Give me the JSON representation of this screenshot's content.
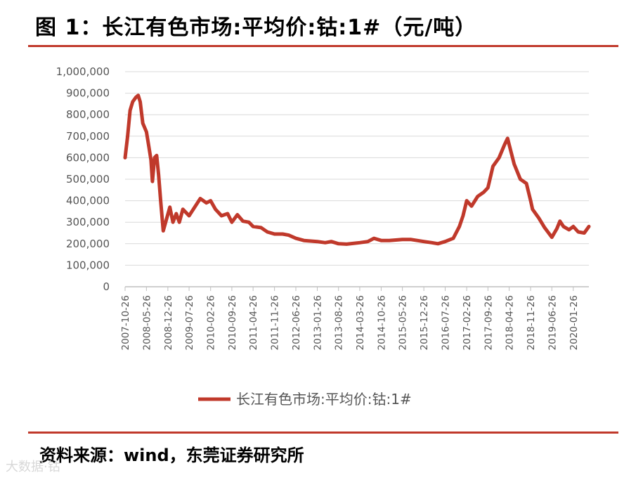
{
  "title": "图 1：长江有色市场:平均价:钴:1#（元/吨）",
  "source": "资料来源：wind，东莞证券研究所",
  "watermark": "大数据·钴",
  "colors": {
    "accent": "#c0392b",
    "series": "#c0392b",
    "grid": "#d9d9d9",
    "axis": "#bfbfbf"
  },
  "chart_data": {
    "type": "line",
    "title": "",
    "xlabel": "",
    "ylabel": "",
    "ylim": [
      0,
      1000000
    ],
    "yticks": [
      "0",
      "100,000",
      "200,000",
      "300,000",
      "400,000",
      "500,000",
      "600,000",
      "700,000",
      "800,000",
      "900,000",
      "1,000,000"
    ],
    "xticks": [
      "2007-10-26",
      "2008-05-26",
      "2008-12-26",
      "2009-07-26",
      "2010-02-26",
      "2010-09-26",
      "2011-04-26",
      "2011-11-26",
      "2012-06-26",
      "2013-01-26",
      "2013-08-26",
      "2014-03-26",
      "2014-10-26",
      "2015-05-26",
      "2015-12-26",
      "2016-07-26",
      "2017-02-26",
      "2017-09-26",
      "2018-04-26",
      "2018-11-26",
      "2019-06-26",
      "2020-01-26"
    ],
    "grid": true,
    "legend_position": "bottom",
    "series": [
      {
        "name": "长江有色市场:平均价:钴:1#",
        "points": [
          [
            "2007-10-26",
            600000
          ],
          [
            "2007-11-20",
            700000
          ],
          [
            "2007-12-15",
            820000
          ],
          [
            "2008-01-10",
            860000
          ],
          [
            "2008-02-10",
            880000
          ],
          [
            "2008-03-05",
            890000
          ],
          [
            "2008-03-25",
            860000
          ],
          [
            "2008-04-20",
            760000
          ],
          [
            "2008-05-26",
            720000
          ],
          [
            "2008-06-20",
            650000
          ],
          [
            "2008-07-10",
            590000
          ],
          [
            "2008-07-25",
            490000
          ],
          [
            "2008-08-15",
            600000
          ],
          [
            "2008-09-05",
            610000
          ],
          [
            "2008-09-25",
            520000
          ],
          [
            "2008-10-15",
            400000
          ],
          [
            "2008-11-10",
            260000
          ],
          [
            "2008-12-10",
            310000
          ],
          [
            "2009-01-15",
            370000
          ],
          [
            "2009-02-15",
            300000
          ],
          [
            "2009-03-20",
            340000
          ],
          [
            "2009-04-20",
            300000
          ],
          [
            "2009-05-25",
            360000
          ],
          [
            "2009-07-26",
            330000
          ],
          [
            "2009-09-20",
            370000
          ],
          [
            "2009-11-15",
            410000
          ],
          [
            "2010-01-15",
            390000
          ],
          [
            "2010-02-26",
            400000
          ],
          [
            "2010-04-15",
            360000
          ],
          [
            "2010-06-15",
            330000
          ],
          [
            "2010-08-15",
            340000
          ],
          [
            "2010-09-26",
            300000
          ],
          [
            "2010-11-20",
            335000
          ],
          [
            "2011-01-15",
            305000
          ],
          [
            "2011-03-15",
            300000
          ],
          [
            "2011-04-26",
            280000
          ],
          [
            "2011-07-15",
            275000
          ],
          [
            "2011-09-15",
            255000
          ],
          [
            "2011-11-26",
            245000
          ],
          [
            "2012-02-15",
            245000
          ],
          [
            "2012-04-15",
            240000
          ],
          [
            "2012-06-26",
            225000
          ],
          [
            "2012-09-15",
            215000
          ],
          [
            "2013-01-26",
            210000
          ],
          [
            "2013-04-15",
            205000
          ],
          [
            "2013-06-15",
            210000
          ],
          [
            "2013-08-26",
            200000
          ],
          [
            "2013-11-15",
            198000
          ],
          [
            "2014-03-26",
            205000
          ],
          [
            "2014-06-15",
            210000
          ],
          [
            "2014-08-15",
            225000
          ],
          [
            "2014-10-26",
            215000
          ],
          [
            "2015-01-15",
            215000
          ],
          [
            "2015-05-26",
            220000
          ],
          [
            "2015-08-15",
            220000
          ],
          [
            "2015-12-26",
            210000
          ],
          [
            "2016-03-15",
            205000
          ],
          [
            "2016-05-15",
            200000
          ],
          [
            "2016-07-26",
            210000
          ],
          [
            "2016-10-15",
            225000
          ],
          [
            "2016-12-15",
            280000
          ],
          [
            "2017-01-20",
            330000
          ],
          [
            "2017-02-26",
            400000
          ],
          [
            "2017-04-15",
            375000
          ],
          [
            "2017-06-15",
            420000
          ],
          [
            "2017-08-15",
            440000
          ],
          [
            "2017-09-26",
            460000
          ],
          [
            "2017-11-15",
            560000
          ],
          [
            "2018-01-15",
            600000
          ],
          [
            "2018-03-10",
            660000
          ],
          [
            "2018-04-10",
            690000
          ],
          [
            "2018-04-26",
            660000
          ],
          [
            "2018-06-15",
            570000
          ],
          [
            "2018-08-15",
            500000
          ],
          [
            "2018-10-15",
            480000
          ],
          [
            "2018-11-26",
            400000
          ],
          [
            "2018-12-15",
            360000
          ],
          [
            "2019-02-15",
            320000
          ],
          [
            "2019-04-15",
            275000
          ],
          [
            "2019-06-26",
            230000
          ],
          [
            "2019-08-15",
            270000
          ],
          [
            "2019-09-15",
            305000
          ],
          [
            "2019-10-20",
            280000
          ],
          [
            "2019-12-15",
            265000
          ],
          [
            "2020-01-26",
            280000
          ],
          [
            "2020-03-15",
            255000
          ],
          [
            "2020-05-15",
            250000
          ],
          [
            "2020-06-30",
            280000
          ]
        ]
      }
    ]
  }
}
